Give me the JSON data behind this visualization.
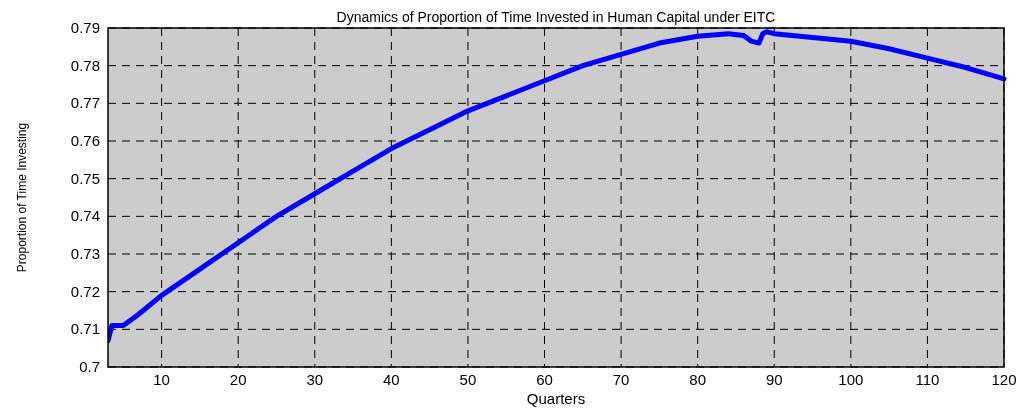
{
  "chart_data": {
    "type": "line",
    "title": "Dynamics of Proportion of Time Invested in Human Capital under EITC",
    "xlabel": "Quarters",
    "ylabel": "Proportion of Time Investing",
    "series": [
      {
        "color": "#0000ff",
        "x": [
          3,
          3.5,
          5,
          7,
          10,
          15,
          20,
          25,
          30,
          35,
          40,
          45,
          50,
          55,
          60,
          65,
          70,
          75,
          80,
          84,
          86,
          87,
          88,
          88.5,
          89,
          90,
          95,
          100,
          105,
          110,
          115,
          120
        ],
        "values": [
          0.707,
          0.711,
          0.711,
          0.714,
          0.719,
          0.726,
          0.733,
          0.74,
          0.746,
          0.752,
          0.758,
          0.763,
          0.768,
          0.772,
          0.776,
          0.78,
          0.783,
          0.786,
          0.7878,
          0.7885,
          0.788,
          0.7865,
          0.786,
          0.7885,
          0.789,
          0.7885,
          0.7875,
          0.7865,
          0.7845,
          0.782,
          0.7795,
          0.7765
        ]
      }
    ],
    "xlim": [
      3,
      120
    ],
    "ylim": [
      0.7,
      0.79
    ],
    "xticks": [
      10,
      20,
      30,
      40,
      50,
      60,
      70,
      80,
      90,
      100,
      110,
      120
    ],
    "yticks": [
      0.7,
      0.71,
      0.72,
      0.73,
      0.74,
      0.75,
      0.76,
      0.77,
      0.78,
      0.79
    ],
    "grid": true,
    "line_style": "solid",
    "marker": "none"
  }
}
